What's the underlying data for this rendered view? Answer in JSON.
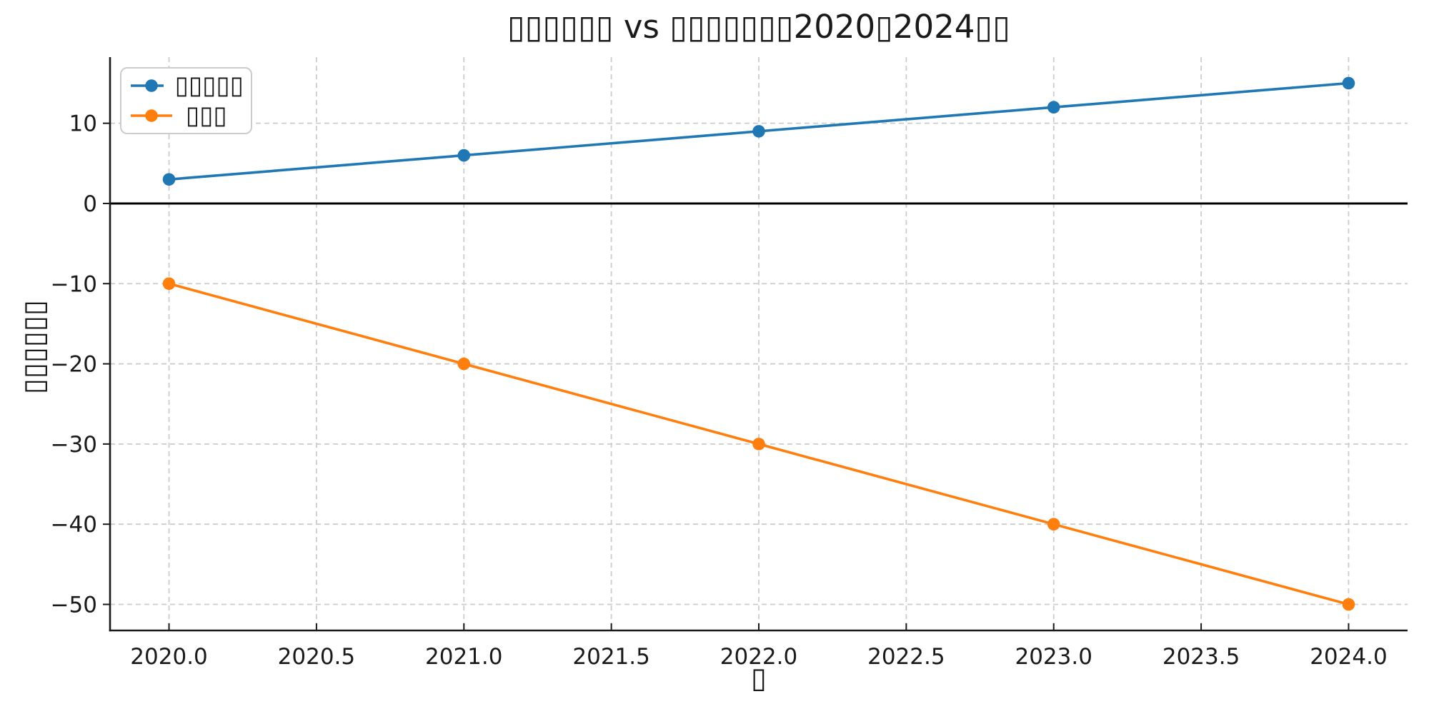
{
  "figure": {
    "background": "#ffffff",
    "text_color": "#1a1a1a",
    "grid_color": "#cccccc",
    "spine_color": "#1a1a1a",
    "zero_line_color": "#000000"
  },
  "chart_data": {
    "type": "line",
    "title": "▯▯▯▯▯▯ vs ▯▯▯▯▯▯▯2020▯2024▯▯",
    "xlabel": "▯",
    "ylabel": "▯▯▯▯▯▯",
    "x": [
      2020,
      2021,
      2022,
      2023,
      2024
    ],
    "series": [
      {
        "name": "▯▯▯▯▯",
        "color": "#1f77b4",
        "marker": "circle",
        "values": [
          3,
          6,
          9,
          12,
          15
        ]
      },
      {
        "name": "▯▯▯",
        "color": "#ff7f0e",
        "marker": "circle",
        "values": [
          -10,
          -20,
          -30,
          -40,
          -50
        ]
      }
    ],
    "xlim": [
      2019.8,
      2024.2
    ],
    "ylim": [
      -53.25,
      18.25
    ],
    "xticks": {
      "values": [
        2020.0,
        2020.5,
        2021.0,
        2021.5,
        2022.0,
        2022.5,
        2023.0,
        2023.5,
        2024.0
      ],
      "labels": [
        "2020.0",
        "2020.5",
        "2021.0",
        "2021.5",
        "2022.0",
        "2022.5",
        "2023.0",
        "2023.5",
        "2024.0"
      ]
    },
    "yticks": {
      "values": [
        10,
        0,
        -10,
        -20,
        -30,
        -40,
        -50
      ],
      "labels": [
        "10",
        "0",
        "−10",
        "−20",
        "−30",
        "−40",
        "−50"
      ]
    },
    "grid": "dashed",
    "zero_line": true,
    "legend_position": "upper-left"
  }
}
